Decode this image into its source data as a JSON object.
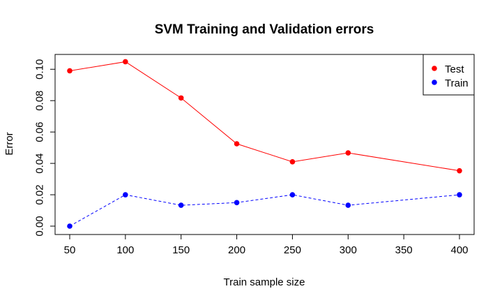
{
  "chart_data": {
    "type": "line",
    "title": "SVM Training and Validation errors",
    "xlabel": "Train sample size",
    "ylabel": "Error",
    "xlim": [
      50,
      400
    ],
    "ylim": [
      0,
      0.105
    ],
    "x_ticks": [
      "50",
      "100",
      "150",
      "200",
      "250",
      "300",
      "350",
      "400"
    ],
    "y_ticks": [
      "0.00",
      "0.02",
      "0.04",
      "0.06",
      "0.08",
      "0.10"
    ],
    "x": [
      50,
      100,
      150,
      200,
      250,
      300,
      400
    ],
    "series": [
      {
        "name": "Test",
        "color": "#ff0000",
        "line_style": "solid",
        "values": [
          0.099,
          0.1048,
          0.0817,
          0.0525,
          0.041,
          0.0467,
          0.0353
        ]
      },
      {
        "name": "Train",
        "color": "#0000ff",
        "line_style": "dashed",
        "values": [
          0.0,
          0.02,
          0.0133,
          0.015,
          0.02,
          0.0133,
          0.02
        ]
      }
    ],
    "legend": {
      "position": "top-right",
      "entries": [
        "Test",
        "Train"
      ]
    },
    "grid": false
  }
}
